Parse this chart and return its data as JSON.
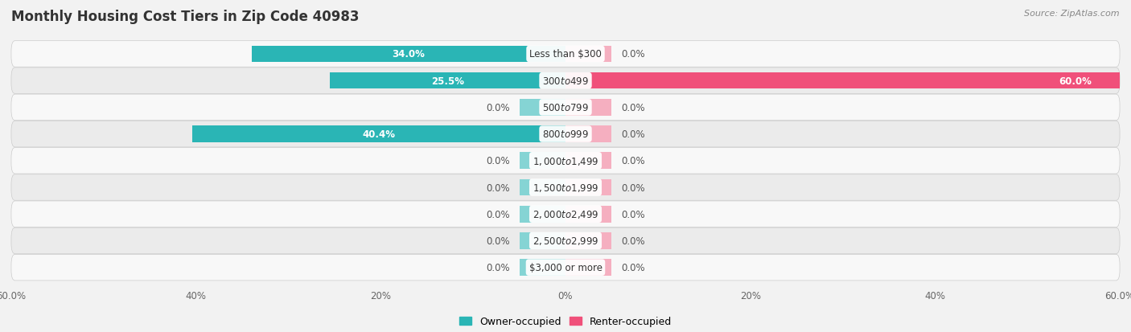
{
  "title": "Monthly Housing Cost Tiers in Zip Code 40983",
  "source": "Source: ZipAtlas.com",
  "categories": [
    "Less than $300",
    "$300 to $499",
    "$500 to $799",
    "$800 to $999",
    "$1,000 to $1,499",
    "$1,500 to $1,999",
    "$2,000 to $2,499",
    "$2,500 to $2,999",
    "$3,000 or more"
  ],
  "owner_values": [
    34.0,
    25.5,
    0.0,
    40.4,
    0.0,
    0.0,
    0.0,
    0.0,
    0.0
  ],
  "renter_values": [
    0.0,
    60.0,
    0.0,
    0.0,
    0.0,
    0.0,
    0.0,
    0.0,
    0.0
  ],
  "owner_color": "#2ab5b5",
  "owner_stub_color": "#85d4d4",
  "renter_color": "#f0507a",
  "renter_stub_color": "#f5afc0",
  "owner_label": "Owner-occupied",
  "renter_label": "Renter-occupied",
  "axis_max": 60.0,
  "bg_color": "#f2f2f2",
  "row_light": "#f8f8f8",
  "row_dark": "#ebebeb",
  "title_fontsize": 12,
  "bar_height": 0.62,
  "stub_size": 5.0,
  "label_outside_color": "#555555",
  "label_inside_color": "#ffffff",
  "cat_label_fontsize": 8.5,
  "value_fontsize": 8.5
}
